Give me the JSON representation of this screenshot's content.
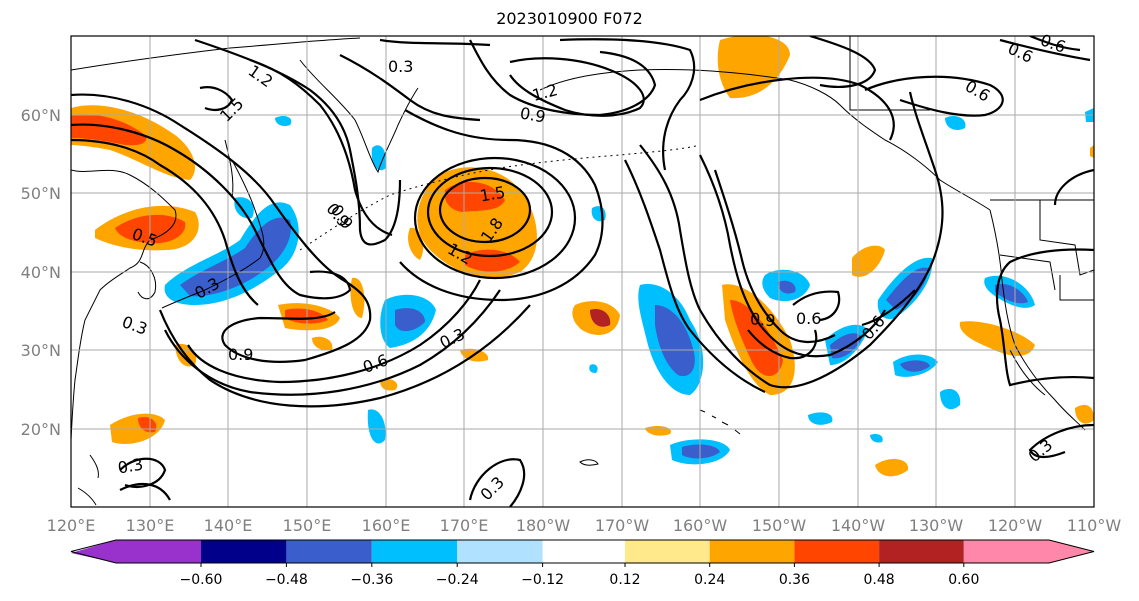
{
  "title": "2023010900 F072",
  "lat_labels": [
    "60°N",
    "50°N",
    "40°N",
    "30°N",
    "20°N"
  ],
  "lon_labels": [
    "120°E",
    "130°E",
    "140°E",
    "150°E",
    "160°E",
    "170°E",
    "180°W",
    "170°W",
    "160°W",
    "150°W",
    "140°W",
    "130°W",
    "120°W",
    "110°W"
  ],
  "contour_labels": [
    "0.3",
    "1.2",
    "1.5",
    "0.9",
    "1.2",
    "0.9",
    "0.6",
    "0.6",
    "0.6",
    "1.5",
    "1.8",
    "1.2",
    "0.9",
    "0.5",
    "0.3",
    "0.3",
    "0.9",
    "0.6",
    "0.3",
    "0.9",
    "0.6",
    "0.6",
    "0.3",
    "0.3",
    "0.3"
  ],
  "colorbar": {
    "ticks": [
      "−0.60",
      "−0.48",
      "−0.36",
      "−0.24",
      "−0.12",
      "0.12",
      "0.24",
      "0.36",
      "0.48",
      "0.60"
    ],
    "colors": [
      "#9932cc",
      "#00008b",
      "#3a5fcd",
      "#00bfff",
      "#b0e2ff",
      "#ffffff",
      "#ffe98a",
      "#ffa500",
      "#ff4500",
      "#b22222",
      "#ff88aa"
    ]
  },
  "colors": {
    "contour": "#000000",
    "grid": "#aaaaaa",
    "tick_label": "#808080"
  }
}
